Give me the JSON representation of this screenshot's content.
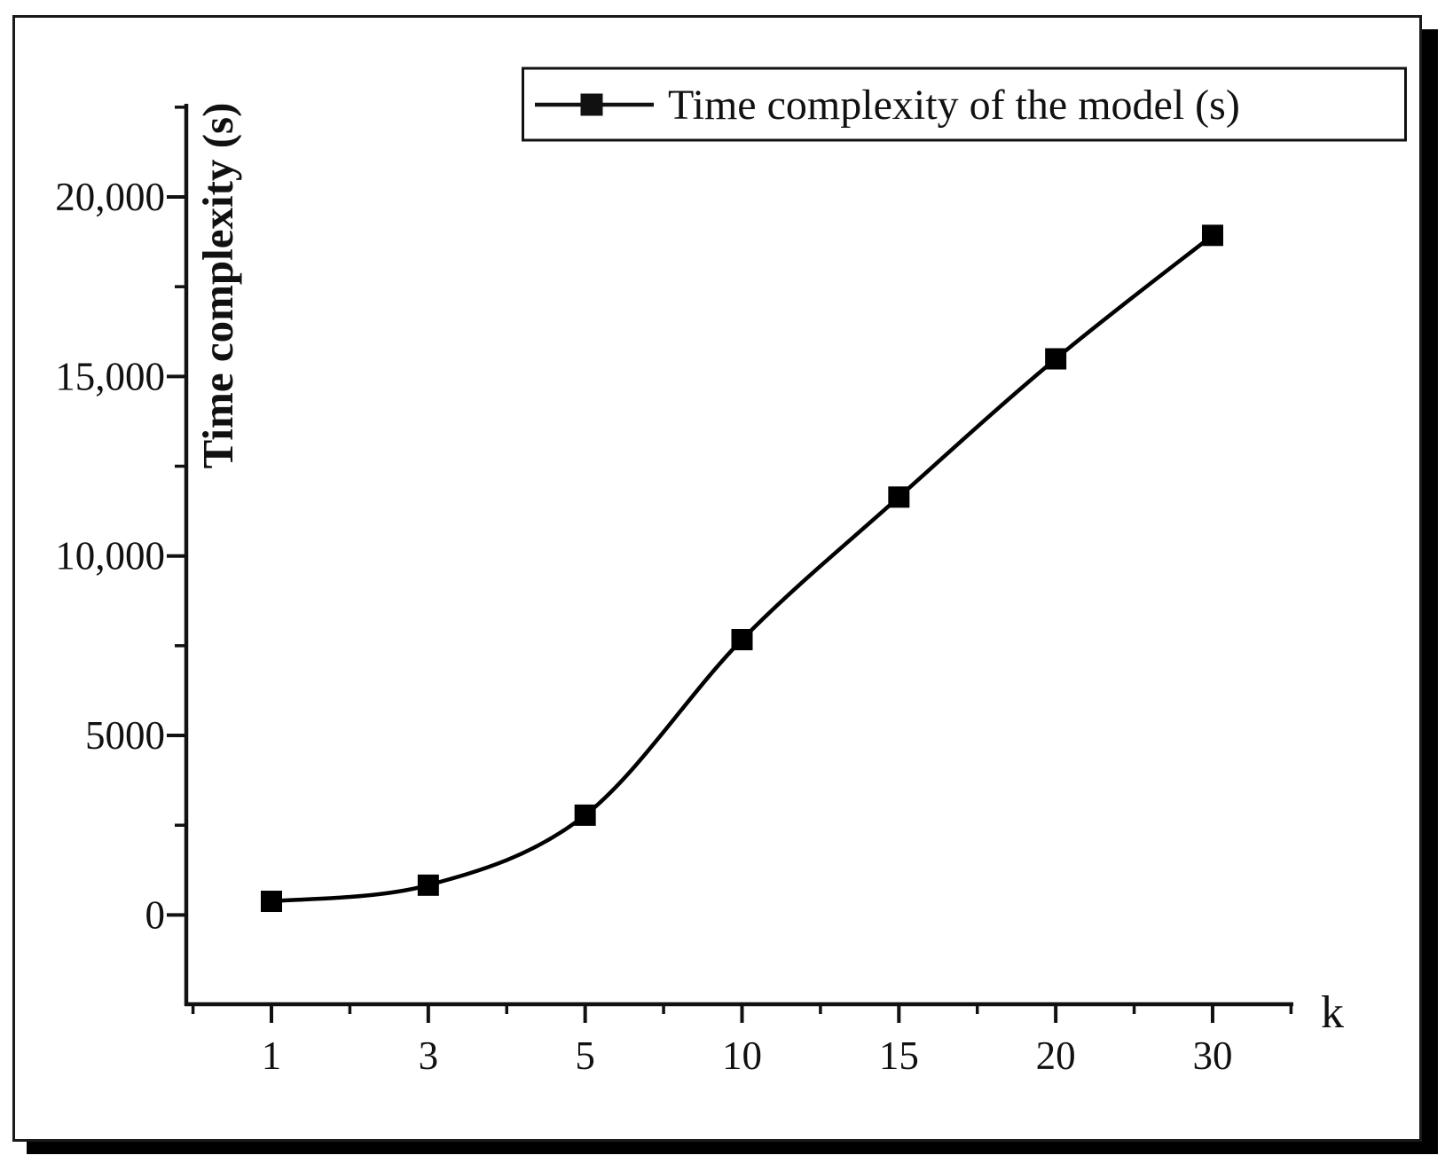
{
  "figure": {
    "background": "#ffffff",
    "ink_color": "#111111",
    "frame_border_color": "#1a1a1a",
    "shadow_color": "#000000"
  },
  "chart_data": {
    "type": "line",
    "title": "",
    "xlabel": "k",
    "ylabel": "Time complexity (s)",
    "legend": [
      "Time complexity of the model （s）"
    ],
    "legend_position": "top",
    "grid": false,
    "marker": "filled-square",
    "line_color": "#000000",
    "categories": [
      1,
      3,
      5,
      10,
      15,
      20,
      30
    ],
    "x_tick_labels": [
      "1",
      "3",
      "5",
      "10",
      "15",
      "20",
      "30"
    ],
    "series": [
      {
        "name": "Time complexity of the model （s）",
        "values": [
          380,
          830,
          2780,
          7670,
          11640,
          15490,
          18930
        ]
      }
    ],
    "ylim": [
      0,
      22500
    ],
    "y_major_ticks": [
      0,
      5000,
      10000,
      15000,
      20000
    ],
    "y_tick_labels": [
      "0",
      "5000",
      "10,000",
      "15,000",
      "20,000"
    ],
    "y_minor_ticks": [
      2500,
      7500,
      12500,
      17500,
      22500
    ]
  }
}
